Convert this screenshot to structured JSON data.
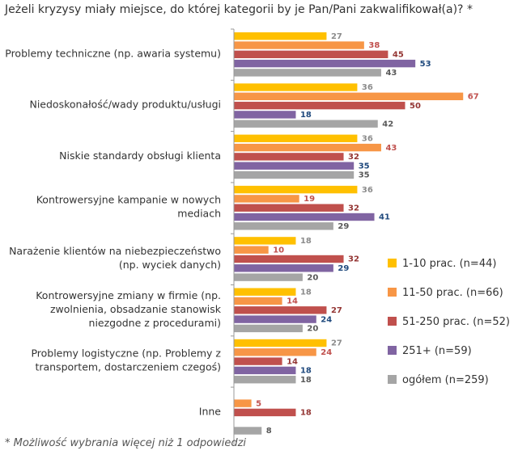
{
  "title": "Jeżeli kryzysy miały miejsce, do której kategorii by je Pan/Pani zakwalifikował(a)?  *",
  "footnote": "* Możliwość wybrania więcej niż 1 odpowiedzi",
  "chart_data": {
    "type": "bar",
    "orientation": "horizontal",
    "categories": [
      [
        "Problemy techniczne (np. awaria systemu)"
      ],
      [
        "Niedoskonałość/wady produktu/usługi"
      ],
      [
        "Niskie standardy obsługi klienta"
      ],
      [
        "Kontrowersyjne kampanie w nowych",
        "mediach"
      ],
      [
        "Narażenie klientów na niebezpieczeństwo",
        "(np. wyciek danych)"
      ],
      [
        "Kontrowersyjne zmiany w firmie (np.",
        "zwolnienia, obsadzanie stanowisk",
        "niezgodne z procedurami)"
      ],
      [
        "Problemy logistyczne (np. Problemy z",
        "transportem, dostarczeniem czegoś)"
      ],
      [
        "Inne"
      ]
    ],
    "series": [
      {
        "name": "1-10 prac. (n=44)",
        "color": "#FFC000",
        "label_color": "#8c8c8c",
        "values": [
          27,
          36,
          36,
          36,
          18,
          18,
          27,
          null
        ]
      },
      {
        "name": "11-50 prac. (n=66)",
        "color": "#F79646",
        "label_color": "#C0504D",
        "values": [
          38,
          67,
          43,
          19,
          10,
          14,
          24,
          5
        ]
      },
      {
        "name": "51-250 prac. (n=52)",
        "color": "#C0504D",
        "label_color": "#943634",
        "values": [
          45,
          50,
          32,
          32,
          32,
          27,
          14,
          18
        ]
      },
      {
        "name": "251+ (n=59)",
        "color": "#8064A2",
        "label_color": "#1F497D",
        "values": [
          53,
          18,
          35,
          41,
          29,
          24,
          18,
          null
        ]
      },
      {
        "name": "ogółem (n=259)",
        "color": "#A5A5A5",
        "label_color": "#595959",
        "values": [
          43,
          42,
          35,
          29,
          20,
          20,
          18,
          8
        ]
      }
    ],
    "xlim": [
      0,
      70
    ],
    "grid": false,
    "legend_position": "right"
  }
}
